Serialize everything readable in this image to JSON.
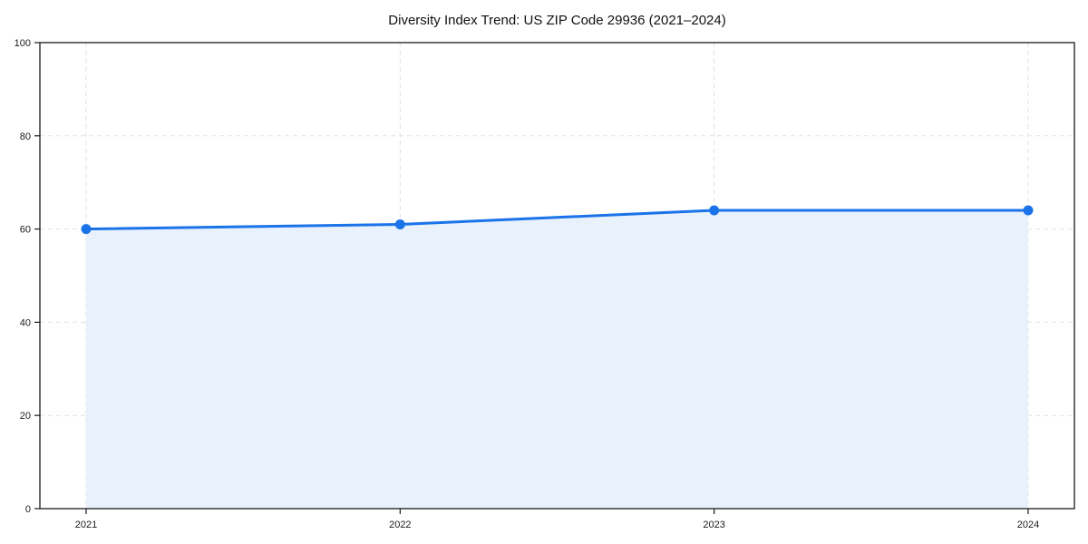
{
  "chart_data": {
    "type": "area",
    "title": "Diversity Index Trend: US ZIP Code 29936 (2021–2024)",
    "x": [
      "2021",
      "2022",
      "2023",
      "2024"
    ],
    "series": [
      {
        "name": "Diversity Index",
        "values": [
          60,
          61,
          64,
          64
        ]
      }
    ],
    "xlabel": "",
    "ylabel": "",
    "ylim": [
      0,
      100
    ],
    "yticks": [
      0,
      20,
      40,
      60,
      80,
      100
    ],
    "grid": true,
    "grid_style": "dashed",
    "legend_position": "none",
    "colors": {
      "line": "#1a73e8",
      "marker": "#1a73e8",
      "fill": "#e8f1fc",
      "grid": "#e2e2e2",
      "frame": "#1a1a1a",
      "tick_text": "#1a1a1a",
      "background": "#ffffff"
    }
  }
}
